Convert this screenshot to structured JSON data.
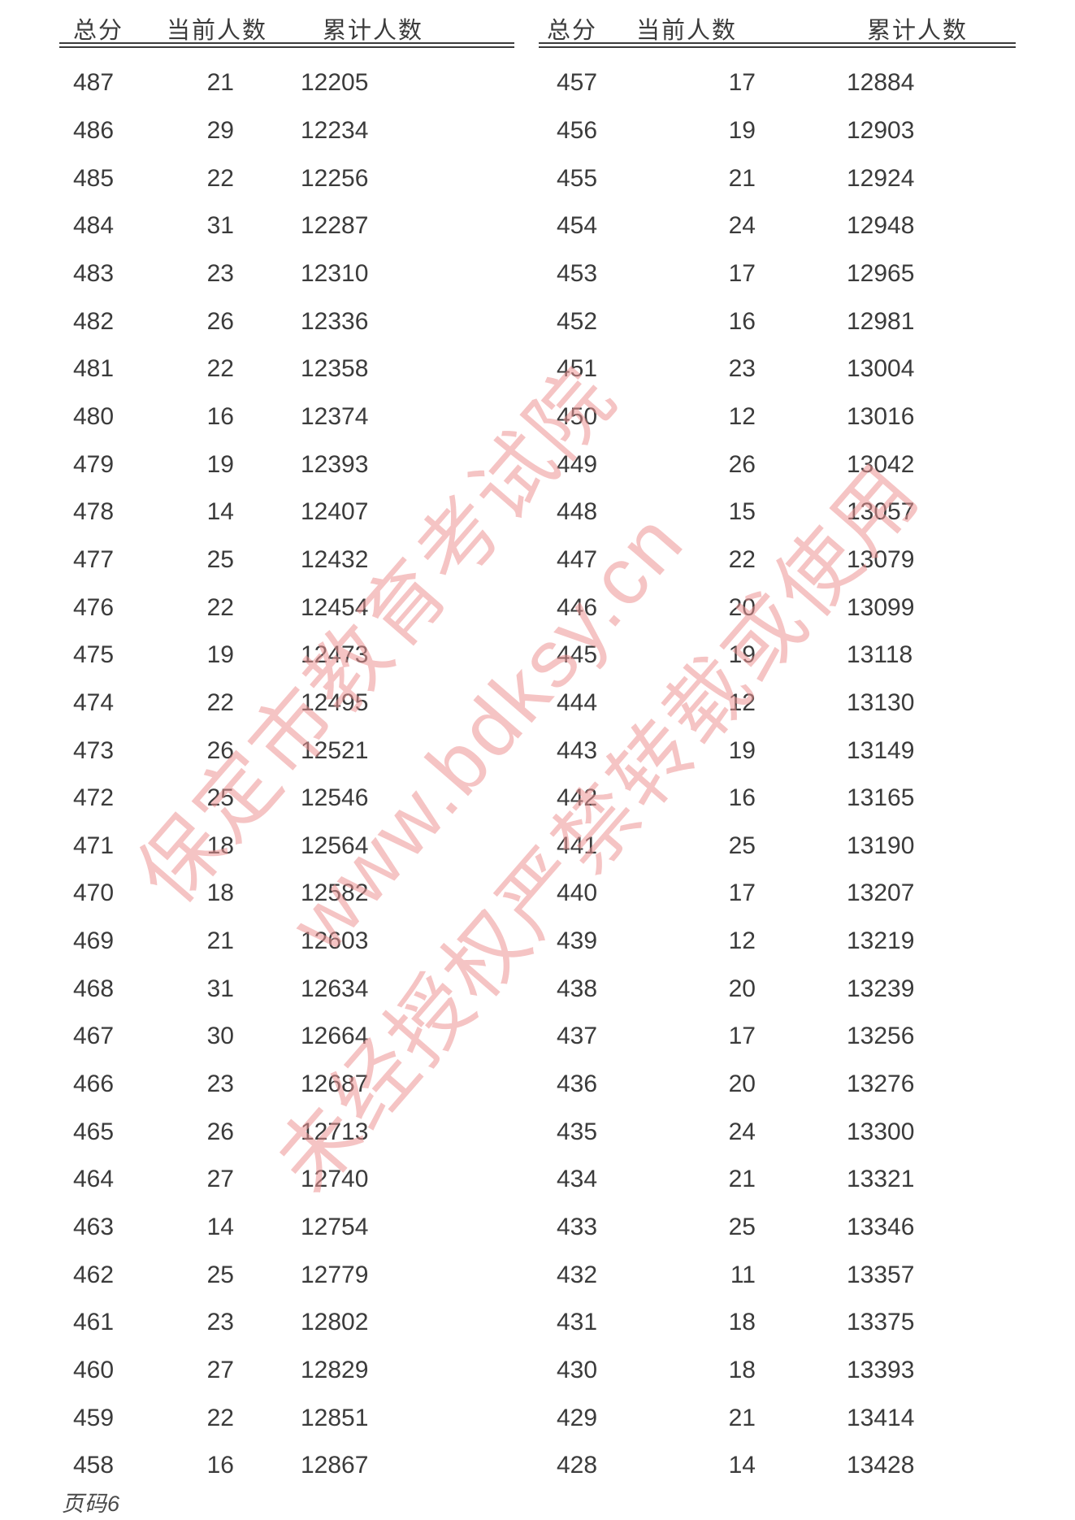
{
  "page": {
    "footer_label": "页码",
    "footer_number": "6"
  },
  "watermark": {
    "line1": "保定市教育考试院",
    "line2": "www.bdksy.cn",
    "line3": "未经授权严禁转载或使用",
    "color": "#ec9393"
  },
  "tables": [
    {
      "headers": [
        "总分",
        "当前人数",
        "累计人数"
      ],
      "rows": [
        [
          487,
          21,
          12205
        ],
        [
          486,
          29,
          12234
        ],
        [
          485,
          22,
          12256
        ],
        [
          484,
          31,
          12287
        ],
        [
          483,
          23,
          12310
        ],
        [
          482,
          26,
          12336
        ],
        [
          481,
          22,
          12358
        ],
        [
          480,
          16,
          12374
        ],
        [
          479,
          19,
          12393
        ],
        [
          478,
          14,
          12407
        ],
        [
          477,
          25,
          12432
        ],
        [
          476,
          22,
          12454
        ],
        [
          475,
          19,
          12473
        ],
        [
          474,
          22,
          12495
        ],
        [
          473,
          26,
          12521
        ],
        [
          472,
          25,
          12546
        ],
        [
          471,
          18,
          12564
        ],
        [
          470,
          18,
          12582
        ],
        [
          469,
          21,
          12603
        ],
        [
          468,
          31,
          12634
        ],
        [
          467,
          30,
          12664
        ],
        [
          466,
          23,
          12687
        ],
        [
          465,
          26,
          12713
        ],
        [
          464,
          27,
          12740
        ],
        [
          463,
          14,
          12754
        ],
        [
          462,
          25,
          12779
        ],
        [
          461,
          23,
          12802
        ],
        [
          460,
          27,
          12829
        ],
        [
          459,
          22,
          12851
        ],
        [
          458,
          16,
          12867
        ]
      ]
    },
    {
      "headers": [
        "总分",
        "当前人数",
        "累计人数"
      ],
      "rows": [
        [
          457,
          17,
          12884
        ],
        [
          456,
          19,
          12903
        ],
        [
          455,
          21,
          12924
        ],
        [
          454,
          24,
          12948
        ],
        [
          453,
          17,
          12965
        ],
        [
          452,
          16,
          12981
        ],
        [
          451,
          23,
          13004
        ],
        [
          450,
          12,
          13016
        ],
        [
          449,
          26,
          13042
        ],
        [
          448,
          15,
          13057
        ],
        [
          447,
          22,
          13079
        ],
        [
          446,
          20,
          13099
        ],
        [
          445,
          19,
          13118
        ],
        [
          444,
          12,
          13130
        ],
        [
          443,
          19,
          13149
        ],
        [
          442,
          16,
          13165
        ],
        [
          441,
          25,
          13190
        ],
        [
          440,
          17,
          13207
        ],
        [
          439,
          12,
          13219
        ],
        [
          438,
          20,
          13239
        ],
        [
          437,
          17,
          13256
        ],
        [
          436,
          20,
          13276
        ],
        [
          435,
          24,
          13300
        ],
        [
          434,
          21,
          13321
        ],
        [
          433,
          25,
          13346
        ],
        [
          432,
          11,
          13357
        ],
        [
          431,
          18,
          13375
        ],
        [
          430,
          18,
          13393
        ],
        [
          429,
          21,
          13414
        ],
        [
          428,
          14,
          13428
        ]
      ]
    }
  ]
}
